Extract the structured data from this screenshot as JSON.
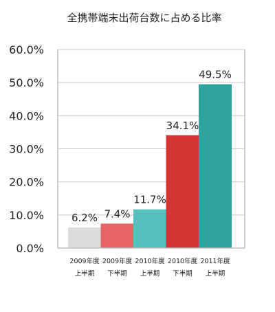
{
  "chart_data": {
    "type": "bar",
    "title": "全携帯端末出荷台数に占める比率",
    "categories": [
      [
        "2009年度",
        "上半期"
      ],
      [
        "2009年度",
        "下半期"
      ],
      [
        "2010年度",
        "上半期"
      ],
      [
        "2010年度",
        "下半期"
      ],
      [
        "2011年度",
        "上半期"
      ]
    ],
    "values": [
      6.2,
      7.4,
      11.7,
      34.1,
      49.5
    ],
    "value_labels": [
      "6.2%",
      "7.4%",
      "11.7%",
      "34.1%",
      "49.5%"
    ],
    "ylim": [
      0,
      60
    ],
    "yticks": [
      "0.0%",
      "10.0%",
      "20.0%",
      "30.0%",
      "40.0%",
      "50.0%",
      "60.0%"
    ],
    "xlabel": "",
    "ylabel": "",
    "grid": true,
    "bar_colors": [
      "#dcdcdc",
      "#e86464",
      "#55c0be",
      "#d43636",
      "#2fa3a0"
    ],
    "grid_color": "#c8c8c8",
    "axis_color": "#bdbdbd"
  }
}
